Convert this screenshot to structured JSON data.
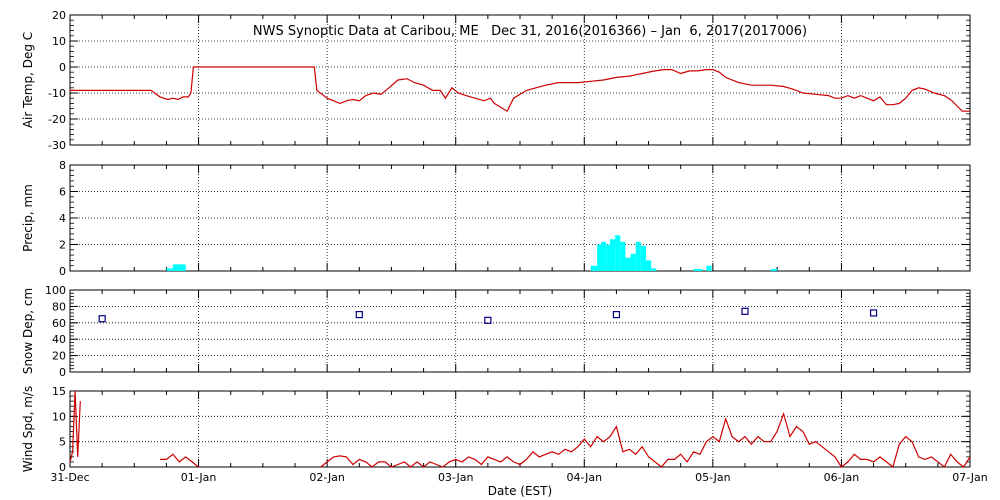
{
  "chart_data": {
    "type": "line",
    "title": "NWS Synoptic Data at Caribou, ME   Dec 31, 2016(2016366) – Jan  6, 2017(2017006)",
    "xlabel": "Date (EST)",
    "x_ticks": [
      "31-Dec",
      "01-Jan",
      "02-Jan",
      "03-Jan",
      "04-Jan",
      "05-Jan",
      "06-Jan",
      "07-Jan"
    ],
    "x_range_days": [
      0,
      7
    ],
    "grid": "dotted",
    "panels": [
      {
        "name": "air-temp",
        "ylabel": "Air Temp, Deg C",
        "type": "line",
        "color": "#cc0000",
        "ylim": [
          -30,
          20
        ],
        "yticks": [
          -30,
          -20,
          -10,
          0,
          10,
          20
        ],
        "x": [
          0,
          0.2,
          0.4,
          0.55,
          0.63,
          0.7,
          0.76,
          0.8,
          0.84,
          0.88,
          0.92,
          0.94,
          0.96,
          1.02,
          1.9,
          1.92,
          1.96,
          2.0,
          2.05,
          2.1,
          2.15,
          2.2,
          2.25,
          2.3,
          2.36,
          2.42,
          2.48,
          2.55,
          2.62,
          2.68,
          2.75,
          2.82,
          2.88,
          2.92,
          2.97,
          3.02,
          3.08,
          3.15,
          3.22,
          3.27,
          3.3,
          3.35,
          3.4,
          3.45,
          3.55,
          3.7,
          3.8,
          3.95,
          4.05,
          4.15,
          4.25,
          4.35,
          4.45,
          4.55,
          4.62,
          4.68,
          4.75,
          4.82,
          4.88,
          4.95,
          5.0,
          5.05,
          5.1,
          5.2,
          5.3,
          5.45,
          5.55,
          5.62,
          5.7,
          5.8,
          5.9,
          5.95,
          6.0,
          6.05,
          6.1,
          6.15,
          6.2,
          6.25,
          6.3,
          6.35,
          6.4,
          6.45,
          6.5,
          6.55,
          6.6,
          6.65,
          6.72,
          6.8,
          6.86,
          6.9,
          6.94,
          7.0
        ],
        "values": [
          -9,
          -9,
          -9,
          -9,
          -9,
          -11.5,
          -12.5,
          -12,
          -12.5,
          -11.5,
          -11.5,
          -10,
          0,
          0,
          0,
          -9,
          -10.5,
          -12,
          -13,
          -14,
          -13,
          -12.5,
          -13,
          -11,
          -10,
          -10.5,
          -8,
          -5,
          -4.5,
          -6,
          -7,
          -9,
          -9,
          -12,
          -8,
          -10,
          -11,
          -12,
          -13,
          -12,
          -14,
          -15.5,
          -17,
          -12,
          -9,
          -7,
          -6,
          -6,
          -5.5,
          -5,
          -4,
          -3.5,
          -2.5,
          -1.5,
          -1,
          -1,
          -2.5,
          -1.5,
          -1.5,
          -1,
          -1,
          -2,
          -4,
          -6,
          -7,
          -7,
          -7.5,
          -8.5,
          -10,
          -10.5,
          -11,
          -12,
          -12,
          -11,
          -12,
          -11,
          -12,
          -13,
          -11.5,
          -14.5,
          -14.5,
          -14,
          -12,
          -9,
          -8,
          -8.5,
          -10,
          -11,
          -13,
          -15,
          -17,
          -17
        ]
      },
      {
        "name": "precip",
        "ylabel": "Precip, mm",
        "type": "bar",
        "color": "#00ffff",
        "ylim": [
          0,
          8
        ],
        "yticks": [
          0,
          2,
          4,
          6,
          8
        ],
        "bars": [
          [
            0.75,
            0.8,
            0.2
          ],
          [
            0.8,
            0.9,
            0.5
          ],
          [
            4.05,
            4.1,
            0.4
          ],
          [
            4.1,
            4.13,
            2.0
          ],
          [
            4.13,
            4.17,
            2.2
          ],
          [
            4.17,
            4.2,
            2.0
          ],
          [
            4.2,
            4.24,
            2.4
          ],
          [
            4.24,
            4.28,
            2.7
          ],
          [
            4.28,
            4.32,
            2.2
          ],
          [
            4.32,
            4.36,
            1.0
          ],
          [
            4.36,
            4.4,
            1.3
          ],
          [
            4.4,
            4.44,
            2.2
          ],
          [
            4.44,
            4.48,
            1.9
          ],
          [
            4.48,
            4.52,
            0.8
          ],
          [
            4.52,
            4.56,
            0.2
          ],
          [
            4.85,
            4.92,
            0.15
          ],
          [
            4.95,
            4.99,
            0.4
          ],
          [
            5.45,
            5.5,
            0.15
          ]
        ]
      },
      {
        "name": "snow-depth",
        "ylabel": "Snow Dep, cm",
        "type": "scatter",
        "color": "#000080",
        "ylim": [
          0,
          100
        ],
        "yticks": [
          0,
          20,
          40,
          60,
          80,
          100
        ],
        "x": [
          0.25,
          2.25,
          3.25,
          4.25,
          5.25,
          6.25
        ],
        "values": [
          65,
          70,
          63,
          70,
          74,
          72
        ]
      },
      {
        "name": "wind-speed",
        "ylabel": "Wind Spd, m/s",
        "type": "line",
        "color": "#cc0000",
        "ylim": [
          0,
          15
        ],
        "yticks": [
          0,
          5,
          10,
          15
        ],
        "segments": [
          {
            "x": [
              0,
              0.02,
              0.04,
              0.06,
              0.08
            ],
            "values": [
              1,
              3,
              15,
              2,
              13
            ]
          },
          {
            "x": [
              0.7,
              0.75,
              0.8,
              0.85,
              0.9,
              0.95,
              1.0
            ],
            "values": [
              1.5,
              1.5,
              2.5,
              1,
              2,
              1,
              0
            ]
          },
          {
            "x": [
              1.95,
              2.0,
              2.05,
              2.1,
              2.15,
              2.2,
              2.25,
              2.3,
              2.35,
              2.4,
              2.45,
              2.5,
              2.55,
              2.6,
              2.65,
              2.7,
              2.75,
              2.8,
              2.85,
              2.9,
              2.95,
              3.0,
              3.05,
              3.1,
              3.15,
              3.2,
              3.25,
              3.3,
              3.35,
              3.4,
              3.45,
              3.5,
              3.55,
              3.6,
              3.65,
              3.7,
              3.75,
              3.8,
              3.85,
              3.9,
              3.95,
              4.0,
              4.05,
              4.1,
              4.15,
              4.2,
              4.25,
              4.3,
              4.35,
              4.4,
              4.45,
              4.5,
              4.55,
              4.6,
              4.65,
              4.7,
              4.75,
              4.8,
              4.85,
              4.9,
              4.95,
              5.0,
              5.05,
              5.1,
              5.15,
              5.2,
              5.25,
              5.3,
              5.35,
              5.4,
              5.45,
              5.5,
              5.55,
              5.6,
              5.65,
              5.7,
              5.75,
              5.8,
              5.85,
              5.9,
              5.95,
              6.0,
              6.05,
              6.1,
              6.15,
              6.2,
              6.25,
              6.3,
              6.35,
              6.4,
              6.45,
              6.5,
              6.55,
              6.6,
              6.65,
              6.7,
              6.75,
              6.8,
              6.85,
              6.9,
              6.95,
              7.0
            ],
            "values": [
              0,
              1,
              2,
              2.2,
              2,
              0.5,
              1.5,
              1,
              0,
              1,
              1,
              0,
              0.5,
              1,
              0,
              1,
              0,
              1,
              0.5,
              0,
              1,
              1.5,
              1,
              2,
              1.5,
              0.5,
              2,
              1.5,
              1,
              2,
              1,
              0.5,
              1.5,
              3,
              2,
              2.5,
              3,
              2.5,
              3.5,
              3,
              4,
              5.5,
              4,
              6,
              5,
              6,
              8,
              3,
              3.5,
              2.5,
              4,
              2,
              1,
              0,
              1.5,
              1.5,
              2.5,
              1,
              3,
              2.5,
              5,
              6,
              5,
              9.5,
              6,
              5,
              6,
              4.5,
              6,
              5,
              5,
              7,
              10.5,
              6,
              8,
              7,
              4.5,
              5,
              4,
              3,
              2,
              0,
              1,
              2.5,
              1.5,
              1.5,
              1,
              2,
              1,
              0,
              4.5,
              6,
              5,
              2,
              1.5,
              2,
              1,
              0,
              2.5,
              1,
              0,
              2
            ]
          }
        ]
      }
    ]
  }
}
